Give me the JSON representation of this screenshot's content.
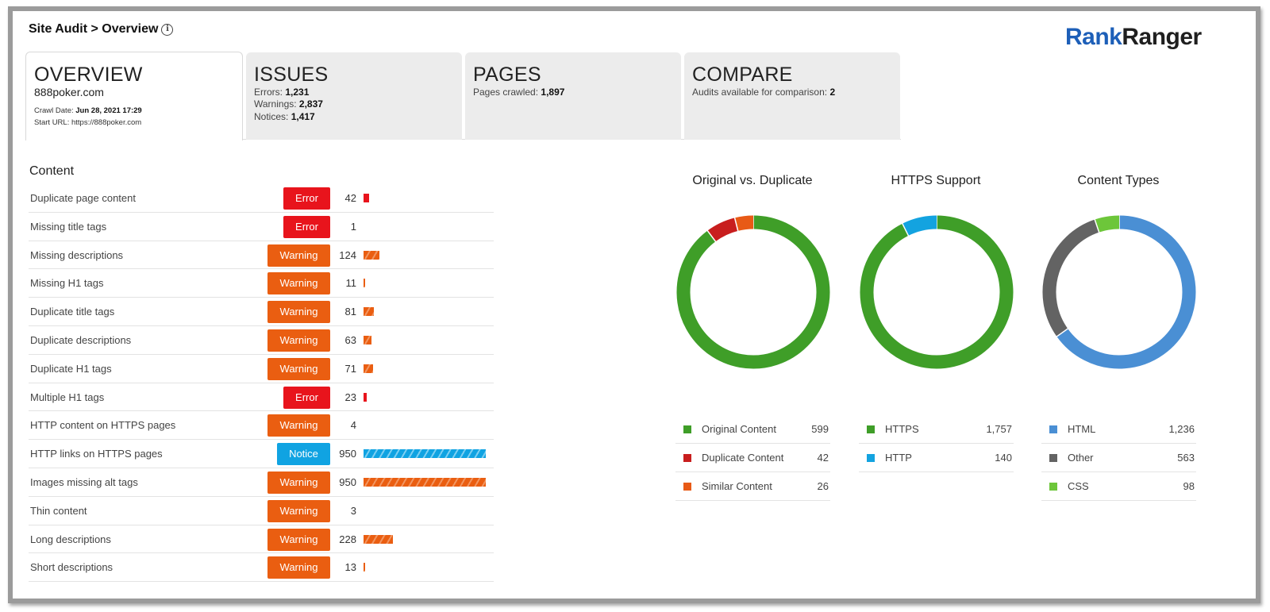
{
  "breadcrumb": "Site Audit > Overview",
  "logo": {
    "part1": "Rank",
    "part2": "Ranger"
  },
  "tabs": {
    "overview": {
      "title": "OVERVIEW",
      "domain": "888poker.com",
      "crawl_date_label": "Crawl Date:",
      "crawl_date": "Jun 28, 2021 17:29",
      "start_url_label": "Start URL:",
      "start_url": "https://888poker.com"
    },
    "issues": {
      "title": "ISSUES",
      "errors_label": "Errors:",
      "errors": "1,231",
      "warnings_label": "Warnings:",
      "warnings": "2,837",
      "notices_label": "Notices:",
      "notices": "1,417"
    },
    "pages": {
      "title": "PAGES",
      "crawled_label": "Pages crawled:",
      "crawled": "1,897"
    },
    "compare": {
      "title": "COMPARE",
      "available_label": "Audits available for comparison:",
      "available": "2"
    }
  },
  "content": {
    "title": "Content",
    "bar_max": 950,
    "rows": [
      {
        "label": "Duplicate page content",
        "severity": "error",
        "badge": "Error",
        "count": "42",
        "value": 42
      },
      {
        "label": "Missing title tags",
        "severity": "error",
        "badge": "Error",
        "count": "1",
        "value": 1
      },
      {
        "label": "Missing descriptions",
        "severity": "warning",
        "badge": "Warning",
        "count": "124",
        "value": 124
      },
      {
        "label": "Missing H1 tags",
        "severity": "warning",
        "badge": "Warning",
        "count": "11",
        "value": 11
      },
      {
        "label": "Duplicate title tags",
        "severity": "warning",
        "badge": "Warning",
        "count": "81",
        "value": 81
      },
      {
        "label": "Duplicate descriptions",
        "severity": "warning",
        "badge": "Warning",
        "count": "63",
        "value": 63
      },
      {
        "label": "Duplicate H1 tags",
        "severity": "warning",
        "badge": "Warning",
        "count": "71",
        "value": 71
      },
      {
        "label": "Multiple H1 tags",
        "severity": "error",
        "badge": "Error",
        "count": "23",
        "value": 23
      },
      {
        "label": "HTTP content on HTTPS pages",
        "severity": "warning",
        "badge": "Warning",
        "count": "4",
        "value": 4
      },
      {
        "label": "HTTP links on HTTPS pages",
        "severity": "notice",
        "badge": "Notice",
        "count": "950",
        "value": 950
      },
      {
        "label": "Images missing alt tags",
        "severity": "warning",
        "badge": "Warning",
        "count": "950",
        "value": 950
      },
      {
        "label": "Thin content",
        "severity": "warning",
        "badge": "Warning",
        "count": "3",
        "value": 3
      },
      {
        "label": "Long descriptions",
        "severity": "warning",
        "badge": "Warning",
        "count": "228",
        "value": 228
      },
      {
        "label": "Short descriptions",
        "severity": "warning",
        "badge": "Warning",
        "count": "13",
        "value": 13
      }
    ]
  },
  "chart_data": [
    {
      "type": "pie",
      "title": "Original vs. Duplicate",
      "categories": [
        "Original Content",
        "Duplicate Content",
        "Similar Content"
      ],
      "values": [
        599,
        42,
        26
      ],
      "display_values": [
        "599",
        "42",
        "26"
      ],
      "colors": [
        "#3f9e28",
        "#c81e1e",
        "#e85a16"
      ]
    },
    {
      "type": "pie",
      "title": "HTTPS Support",
      "categories": [
        "HTTPS",
        "HTTP"
      ],
      "values": [
        1757,
        140
      ],
      "display_values": [
        "1,757",
        "140"
      ],
      "colors": [
        "#3f9e28",
        "#13a3e0"
      ]
    },
    {
      "type": "pie",
      "title": "Content Types",
      "categories": [
        "HTML",
        "Other",
        "CSS"
      ],
      "values": [
        1236,
        563,
        98
      ],
      "display_values": [
        "1,236",
        "563",
        "98"
      ],
      "colors": [
        "#4a8fd4",
        "#636363",
        "#6dc63a"
      ]
    }
  ]
}
